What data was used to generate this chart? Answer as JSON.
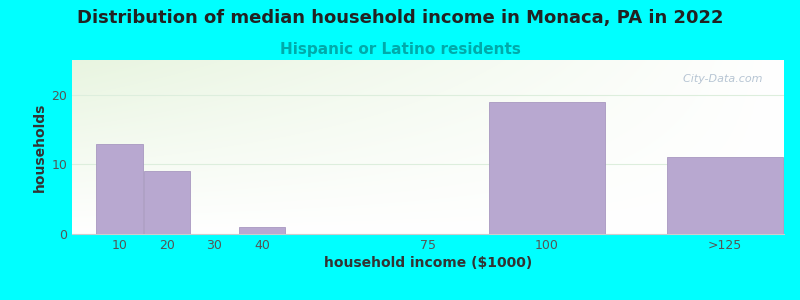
{
  "title": "Distribution of median household income in Monaca, PA in 2022",
  "subtitle": "Hispanic or Latino residents",
  "xlabel": "household income ($1000)",
  "ylabel": "households",
  "background_color": "#00FFFF",
  "bar_color": "#b8a8d0",
  "bar_edge_color": "#a898c0",
  "categories": [
    "10",
    "20",
    "30",
    "40",
    "75",
    "100",
    ">125"
  ],
  "values": [
    13,
    9,
    0,
    1,
    0,
    19,
    11
  ],
  "bar_positions": [
    10,
    20,
    30,
    40,
    75,
    100,
    137.5
  ],
  "bar_widths": [
    10,
    10,
    10,
    10,
    35,
    25,
    25
  ],
  "ylim": [
    0,
    25
  ],
  "yticks": [
    0,
    10,
    20
  ],
  "title_fontsize": 13,
  "subtitle_fontsize": 11,
  "axis_label_fontsize": 10,
  "tick_fontsize": 9,
  "watermark_text": "© City-Data.com",
  "watermark_color": "#aabbcc",
  "grid_color": "#ddeedd",
  "xlim": [
    0,
    150
  ]
}
